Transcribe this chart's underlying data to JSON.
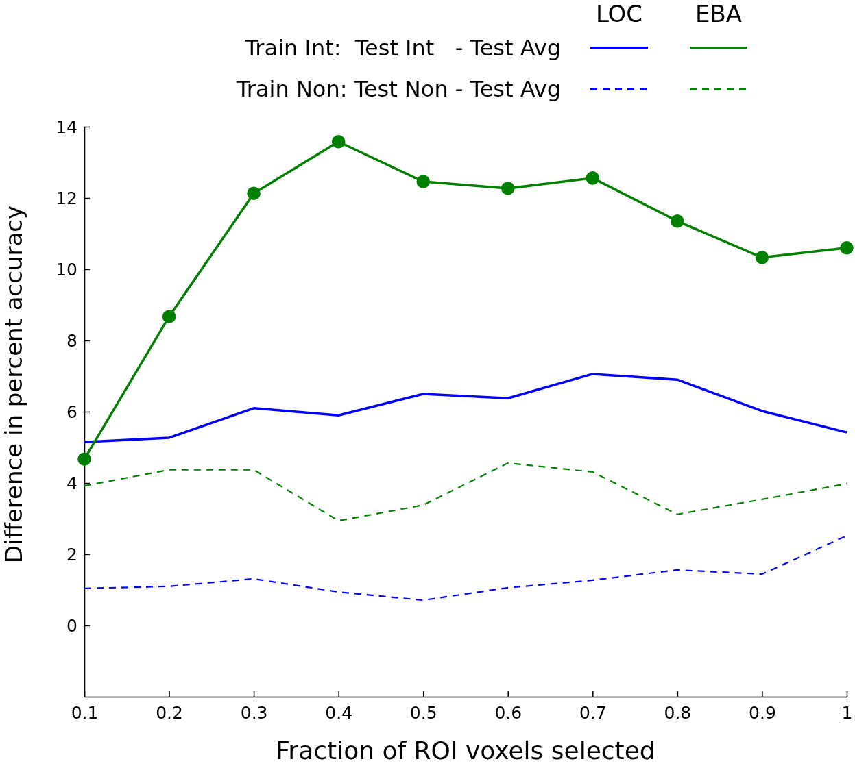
{
  "chart_data": {
    "type": "line",
    "xlabel": "Fraction of ROI voxels selected",
    "ylabel": "Difference in percent accuracy",
    "x": [
      0.1,
      0.2,
      0.3,
      0.4,
      0.5,
      0.6,
      0.7,
      0.8,
      0.9,
      1
    ],
    "series": [
      {
        "color": "#0000ff",
        "line_style": "solid",
        "marker": "none",
        "values": [
          5.15,
          5.27,
          6.1,
          5.9,
          6.5,
          6.38,
          7.06,
          6.9,
          6.02,
          5.42
        ]
      },
      {
        "color": "#008000",
        "line_style": "solid",
        "marker": "circle",
        "values": [
          4.67,
          8.67,
          12.13,
          13.58,
          12.46,
          12.27,
          12.56,
          11.35,
          10.33,
          10.6
        ]
      },
      {
        "color": "#0000ff",
        "line_style": "dashed",
        "marker": "none",
        "values": [
          1.04,
          1.1,
          1.31,
          0.94,
          0.71,
          1.06,
          1.27,
          1.56,
          1.44,
          2.52
        ]
      },
      {
        "color": "#008000",
        "line_style": "dashed",
        "marker": "none",
        "values": [
          3.92,
          4.37,
          4.37,
          2.94,
          3.38,
          4.56,
          4.31,
          3.12,
          3.54,
          3.98
        ]
      }
    ],
    "annotations": [
      "LOC",
      "EBA",
      "Train Int:  Test Int   - Test Avg",
      "Train Non: Test Non - Test Avg"
    ],
    "grid": false,
    "xlim": [
      0.1,
      1
    ],
    "xticks": [
      0.1,
      0.2,
      0.3,
      0.4,
      0.5,
      0.6,
      0.7,
      0.8,
      0.9,
      1
    ],
    "ylim": [
      -2,
      14
    ],
    "yticks": [
      0,
      2,
      4,
      6,
      8,
      10,
      12,
      14
    ]
  }
}
